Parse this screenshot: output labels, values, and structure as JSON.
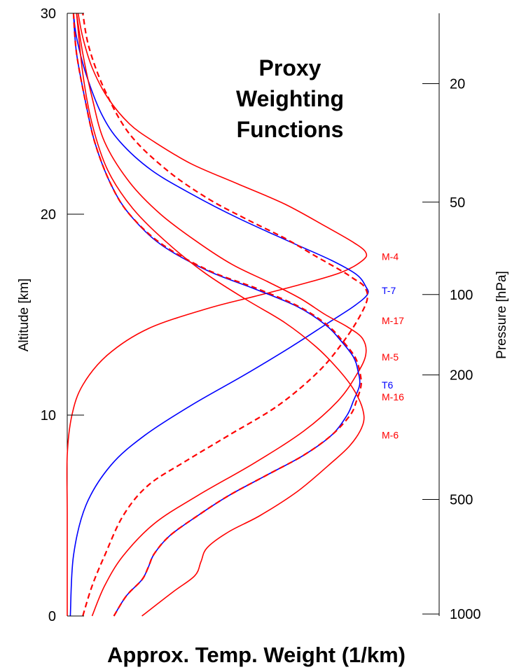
{
  "chart_data": {
    "type": "line",
    "title_lines": [
      "Proxy",
      "Weighting",
      "Functions"
    ],
    "xlabel": "Approx. Temp. Weight (1/km)",
    "ylabel": "Altitude [km]",
    "y2label": "Pressure [hPa]",
    "ylim": [
      0,
      30
    ],
    "xlim": [
      0,
      1
    ],
    "yticks": [
      0,
      10,
      20,
      30
    ],
    "pressure_ticks": [
      {
        "label": "20",
        "alt": 26.5
      },
      {
        "label": "50",
        "alt": 20.6
      },
      {
        "label": "100",
        "alt": 16.0
      },
      {
        "label": "200",
        "alt": 12.0
      },
      {
        "label": "500",
        "alt": 5.8
      },
      {
        "label": "1000",
        "alt": 0.1
      }
    ],
    "colors": {
      "red": "#ff0000",
      "blue": "#0000ff",
      "axis": "#000000"
    },
    "series": [
      {
        "name": "M-4",
        "color": "#ff0000",
        "dash": false,
        "label_alt": 17.9,
        "points": [
          [
            0.0,
            0
          ],
          [
            0.0,
            5
          ],
          [
            0.0,
            8
          ],
          [
            0.015,
            10
          ],
          [
            0.05,
            11.5
          ],
          [
            0.13,
            13
          ],
          [
            0.26,
            14.3
          ],
          [
            0.45,
            15.3
          ],
          [
            0.6,
            15.9
          ],
          [
            0.75,
            16.5
          ],
          [
            0.88,
            17.1
          ],
          [
            0.95,
            17.7
          ],
          [
            0.96,
            18.1
          ],
          [
            0.92,
            18.6
          ],
          [
            0.83,
            19.4
          ],
          [
            0.7,
            20.5
          ],
          [
            0.55,
            21.5
          ],
          [
            0.4,
            22.5
          ],
          [
            0.28,
            23.6
          ],
          [
            0.2,
            24.5
          ],
          [
            0.13,
            25.8
          ],
          [
            0.08,
            27.3
          ],
          [
            0.05,
            28.8
          ],
          [
            0.035,
            30
          ]
        ]
      },
      {
        "name": "T-7",
        "color": "#0000ff",
        "dash": false,
        "label_alt": 16.2,
        "points": [
          [
            0.01,
            0
          ],
          [
            0.02,
            3
          ],
          [
            0.06,
            5.5
          ],
          [
            0.14,
            7.5
          ],
          [
            0.25,
            9
          ],
          [
            0.4,
            10.5
          ],
          [
            0.57,
            12
          ],
          [
            0.72,
            13.4
          ],
          [
            0.84,
            14.6
          ],
          [
            0.92,
            15.4
          ],
          [
            0.965,
            16.0
          ],
          [
            0.96,
            16.4
          ],
          [
            0.93,
            17.0
          ],
          [
            0.85,
            17.7
          ],
          [
            0.72,
            18.6
          ],
          [
            0.55,
            19.8
          ],
          [
            0.4,
            21
          ],
          [
            0.27,
            22.2
          ],
          [
            0.17,
            23.6
          ],
          [
            0.11,
            25
          ],
          [
            0.06,
            27
          ],
          [
            0.03,
            28.8
          ],
          [
            0.02,
            30
          ]
        ]
      },
      {
        "name": "M-17",
        "color": "#ff0000",
        "dash": true,
        "label_alt": 14.7,
        "points": [
          [
            0.05,
            0
          ],
          [
            0.08,
            1.5
          ],
          [
            0.12,
            3
          ],
          [
            0.18,
            5
          ],
          [
            0.26,
            6.5
          ],
          [
            0.38,
            7.7
          ],
          [
            0.52,
            9
          ],
          [
            0.68,
            10.5
          ],
          [
            0.81,
            12.2
          ],
          [
            0.89,
            13.7
          ],
          [
            0.94,
            14.9
          ],
          [
            0.965,
            15.8
          ],
          [
            0.955,
            16.4
          ],
          [
            0.92,
            16.8
          ],
          [
            0.88,
            17.2
          ],
          [
            0.8,
            17.9
          ],
          [
            0.7,
            18.8
          ],
          [
            0.57,
            19.8
          ],
          [
            0.45,
            20.8
          ],
          [
            0.32,
            22.2
          ],
          [
            0.2,
            24
          ],
          [
            0.12,
            26.2
          ],
          [
            0.07,
            28.3
          ],
          [
            0.05,
            30
          ]
        ]
      },
      {
        "name": "M-5",
        "color": "#ff0000",
        "dash": false,
        "label_alt": 12.9,
        "points": [
          [
            0.08,
            0
          ],
          [
            0.12,
            1.5
          ],
          [
            0.18,
            3
          ],
          [
            0.28,
            4.6
          ],
          [
            0.42,
            6
          ],
          [
            0.6,
            7.6
          ],
          [
            0.76,
            9.2
          ],
          [
            0.87,
            10.7
          ],
          [
            0.93,
            12
          ],
          [
            0.96,
            13
          ],
          [
            0.95,
            13.8
          ],
          [
            0.9,
            14.4
          ],
          [
            0.83,
            15.0
          ],
          [
            0.75,
            15.8
          ],
          [
            0.65,
            16.6
          ],
          [
            0.53,
            17.5
          ],
          [
            0.42,
            18.6
          ],
          [
            0.3,
            20
          ],
          [
            0.2,
            21.6
          ],
          [
            0.12,
            23.6
          ],
          [
            0.08,
            25.8
          ],
          [
            0.05,
            28
          ],
          [
            0.03,
            30
          ]
        ]
      },
      {
        "name": "T6",
        "color": "#0000ff",
        "dash": false,
        "label_alt": 11.5,
        "points": [
          [
            0.15,
            0
          ],
          [
            0.19,
            1
          ],
          [
            0.24,
            1.8
          ],
          [
            0.26,
            2.4
          ],
          [
            0.28,
            3.1
          ],
          [
            0.33,
            4
          ],
          [
            0.42,
            5
          ],
          [
            0.52,
            6
          ],
          [
            0.64,
            7
          ],
          [
            0.76,
            8
          ],
          [
            0.85,
            9
          ],
          [
            0.9,
            10
          ],
          [
            0.92,
            10.7
          ],
          [
            0.94,
            11.5
          ],
          [
            0.935,
            12.2
          ],
          [
            0.92,
            12.9
          ],
          [
            0.88,
            13.7
          ],
          [
            0.83,
            14.5
          ],
          [
            0.74,
            15.4
          ],
          [
            0.6,
            16.3
          ],
          [
            0.45,
            17.2
          ],
          [
            0.3,
            18.5
          ],
          [
            0.2,
            20
          ],
          [
            0.14,
            21.5
          ],
          [
            0.09,
            23.5
          ],
          [
            0.06,
            25.5
          ],
          [
            0.03,
            28
          ],
          [
            0.02,
            30
          ]
        ]
      },
      {
        "name": "M-16",
        "color": "#ff0000",
        "dash": true,
        "label_alt": 10.9,
        "points": [
          [
            0.15,
            0
          ],
          [
            0.19,
            1
          ],
          [
            0.24,
            1.8
          ],
          [
            0.26,
            2.4
          ],
          [
            0.28,
            3.1
          ],
          [
            0.33,
            4
          ],
          [
            0.42,
            5
          ],
          [
            0.52,
            6
          ],
          [
            0.64,
            7
          ],
          [
            0.76,
            8
          ],
          [
            0.85,
            9
          ],
          [
            0.91,
            10
          ],
          [
            0.93,
            10.7
          ],
          [
            0.945,
            11.5
          ],
          [
            0.94,
            12.2
          ],
          [
            0.925,
            12.9
          ],
          [
            0.885,
            13.7
          ],
          [
            0.835,
            14.5
          ],
          [
            0.745,
            15.4
          ],
          [
            0.61,
            16.3
          ],
          [
            0.455,
            17.2
          ],
          [
            0.305,
            18.5
          ],
          [
            0.2,
            20
          ],
          [
            0.14,
            21.5
          ],
          [
            0.09,
            23.5
          ],
          [
            0.06,
            25.5
          ],
          [
            0.03,
            28
          ],
          [
            0.02,
            30
          ]
        ]
      },
      {
        "name": "M-6",
        "color": "#ff0000",
        "dash": false,
        "label_alt": 9.0,
        "points": [
          [
            0.24,
            0
          ],
          [
            0.34,
            1.2
          ],
          [
            0.41,
            2
          ],
          [
            0.43,
            2.7
          ],
          [
            0.45,
            3.4
          ],
          [
            0.52,
            4.2
          ],
          [
            0.62,
            5
          ],
          [
            0.74,
            6.2
          ],
          [
            0.84,
            7.5
          ],
          [
            0.91,
            8.5
          ],
          [
            0.95,
            9.5
          ],
          [
            0.95,
            10.3
          ],
          [
            0.92,
            11.3
          ],
          [
            0.87,
            12.3
          ],
          [
            0.8,
            13.4
          ],
          [
            0.7,
            14.6
          ],
          [
            0.57,
            15.8
          ],
          [
            0.44,
            17.1
          ],
          [
            0.32,
            18.6
          ],
          [
            0.21,
            20.3
          ],
          [
            0.13,
            22.2
          ],
          [
            0.08,
            24.5
          ],
          [
            0.05,
            27
          ],
          [
            0.03,
            30
          ]
        ]
      }
    ]
  }
}
